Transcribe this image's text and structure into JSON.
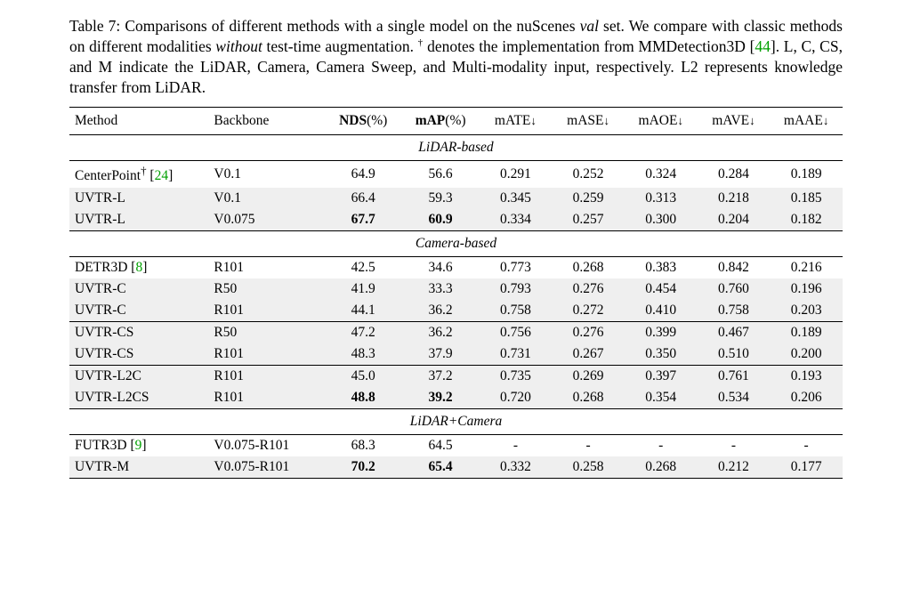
{
  "caption": {
    "prefix": "Table 7:  Comparisons of different methods with a single model on the nuScenes ",
    "val": "val",
    "mid1": " set.  We compare with classic methods on different modalities ",
    "without": "without",
    "mid2": " test-time augmentation. ",
    "dagger": "†",
    "mid3": " denotes the implementation from MMDetection3D [",
    "ref1": "44",
    "mid4": "]. L, C, CS, and M indicate the LiDAR, Camera, Camera Sweep, and Multi-modality input, respectively. L2 represents knowledge transfer from LiDAR."
  },
  "headers": {
    "method": "Method",
    "backbone": "Backbone",
    "nds": "NDS",
    "nds_suffix": "(%)",
    "map": "mAP",
    "map_suffix": "(%)",
    "mate": "mATE",
    "mase": "mASE",
    "maoe": "mAOE",
    "mave": "mAVE",
    "maae": "mAAE",
    "down": "↓"
  },
  "sections": {
    "lidar": "LiDAR-based",
    "camera": "Camera-based",
    "both": "LiDAR+Camera"
  },
  "rows": {
    "cp": {
      "m1": "CenterPoint",
      "dag": "†",
      "ref": "24",
      "bb": "V0.1",
      "nds": "64.9",
      "map": "56.6",
      "mate": "0.291",
      "mase": "0.252",
      "maoe": "0.324",
      "mave": "0.284",
      "maae": "0.189"
    },
    "l1": {
      "m": "UVTR-L",
      "bb": "V0.1",
      "nds": "66.4",
      "map": "59.3",
      "mate": "0.345",
      "mase": "0.259",
      "maoe": "0.313",
      "mave": "0.218",
      "maae": "0.185"
    },
    "l2": {
      "m": "UVTR-L",
      "bb": "V0.075",
      "nds": "67.7",
      "map": "60.9",
      "mate": "0.334",
      "mase": "0.257",
      "maoe": "0.300",
      "mave": "0.204",
      "maae": "0.182"
    },
    "d3d": {
      "m1": "DETR3D",
      "ref": "8",
      "bb": "R101",
      "nds": "42.5",
      "map": "34.6",
      "mate": "0.773",
      "mase": "0.268",
      "maoe": "0.383",
      "mave": "0.842",
      "maae": "0.216"
    },
    "c1": {
      "m": "UVTR-C",
      "bb": "R50",
      "nds": "41.9",
      "map": "33.3",
      "mate": "0.793",
      "mase": "0.276",
      "maoe": "0.454",
      "mave": "0.760",
      "maae": "0.196"
    },
    "c2": {
      "m": "UVTR-C",
      "bb": "R101",
      "nds": "44.1",
      "map": "36.2",
      "mate": "0.758",
      "mase": "0.272",
      "maoe": "0.410",
      "mave": "0.758",
      "maae": "0.203"
    },
    "cs1": {
      "m": "UVTR-CS",
      "bb": "R50",
      "nds": "47.2",
      "map": "36.2",
      "mate": "0.756",
      "mase": "0.276",
      "maoe": "0.399",
      "mave": "0.467",
      "maae": "0.189"
    },
    "cs2": {
      "m": "UVTR-CS",
      "bb": "R101",
      "nds": "48.3",
      "map": "37.9",
      "mate": "0.731",
      "mase": "0.267",
      "maoe": "0.350",
      "mave": "0.510",
      "maae": "0.200"
    },
    "l2c": {
      "m": "UVTR-L2C",
      "bb": "R101",
      "nds": "45.0",
      "map": "37.2",
      "mate": "0.735",
      "mase": "0.269",
      "maoe": "0.397",
      "mave": "0.761",
      "maae": "0.193"
    },
    "l2cs": {
      "m": "UVTR-L2CS",
      "bb": "R101",
      "nds": "48.8",
      "map": "39.2",
      "mate": "0.720",
      "mase": "0.268",
      "maoe": "0.354",
      "mave": "0.534",
      "maae": "0.206"
    },
    "fut": {
      "m1": "FUTR3D",
      "ref": "9",
      "bb": "V0.075-R101",
      "nds": "68.3",
      "map": "64.5",
      "mate": "-",
      "mase": "-",
      "maoe": "-",
      "mave": "-",
      "maae": "-"
    },
    "mm": {
      "m": "UVTR-M",
      "bb": "V0.075-R101",
      "nds": "70.2",
      "map": "65.4",
      "mate": "0.332",
      "mase": "0.258",
      "maoe": "0.268",
      "mave": "0.212",
      "maae": "0.177"
    }
  },
  "col_widths": [
    "18%",
    "15%",
    "10%",
    "10%",
    "9.4%",
    "9.4%",
    "9.4%",
    "9.4%",
    "9.4%"
  ]
}
